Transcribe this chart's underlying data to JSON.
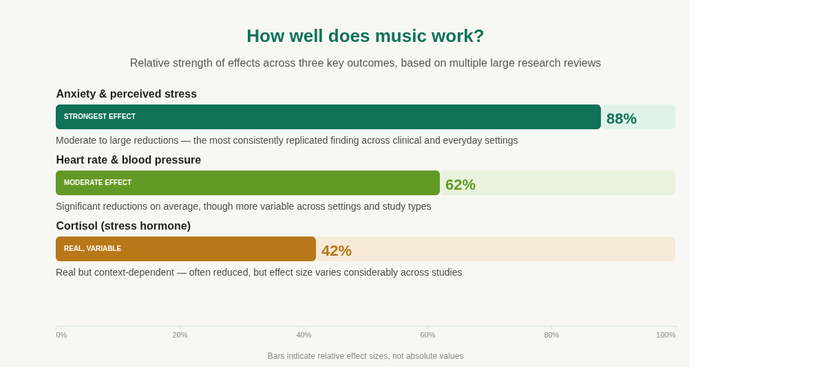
{
  "chart_data": {
    "type": "bar",
    "orientation": "horizontal",
    "stacked": true,
    "title": "How well does music work?",
    "subtitle": "Relative strength of effects across three key outcomes, based on multiple large research reviews",
    "categories": [
      "Anxiety & perceived stress",
      "Heart rate & blood pressure",
      "Cortisol (stress hormone)"
    ],
    "series": [
      {
        "colors": [
          "#0f7259",
          "#639a25",
          "#b87718"
        ],
        "values": [
          88,
          62,
          42
        ],
        "value_labels": [
          "88%",
          "62%",
          "42%"
        ]
      },
      {
        "colors": [
          "#e0f3ea",
          "#e9f2dc",
          "#f8ead8"
        ],
        "values": [
          12,
          38,
          58
        ]
      }
    ],
    "xlim": [
      0,
      100
    ],
    "xticks": [
      {
        "value": 0,
        "label": "0%"
      },
      {
        "value": 20,
        "label": "20%"
      },
      {
        "value": 40,
        "label": "40%"
      },
      {
        "value": 60,
        "label": "60%"
      },
      {
        "value": 80,
        "label": "80%"
      },
      {
        "value": 100,
        "label": "100%"
      }
    ],
    "grid": false,
    "annotations": [
      "STRONGEST EFFECT",
      "MODERATE EFFECT",
      "REAL, VARIABLE",
      "Moderate to large reductions — the most consistently replicated finding across clinical and everyday settings",
      "Significant reductions on average, though more variable across settings and study types",
      "Real but context-dependent — often reduced, but effect size varies considerably across studies",
      "Bars indicate relative effect sizes, not absolute values"
    ]
  }
}
